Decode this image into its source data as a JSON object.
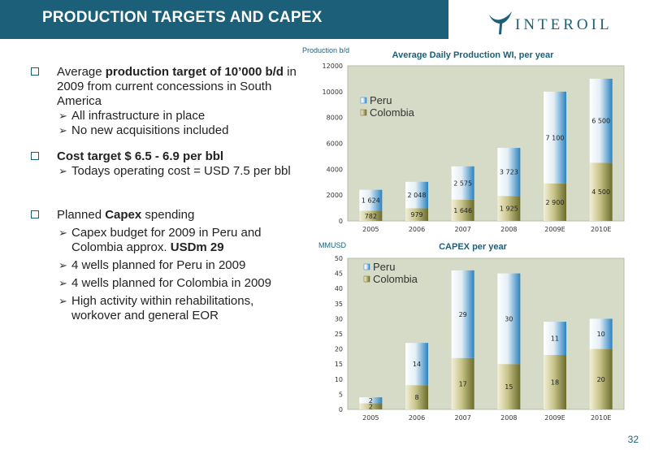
{
  "header": {
    "title": "PRODUCTION TARGETS AND CAPEX",
    "logo_text": "INTEROIL"
  },
  "bullets": {
    "b1": {
      "pre": "Average ",
      "bold": "production target of 10’000 b/d",
      "post": " in 2009 from current concessions in South America",
      "subs": [
        "All infrastructure in place",
        "No new acquisitions included"
      ]
    },
    "b2": {
      "bold": "Cost target $ 6.5 - 6.9 per bbl",
      "subs": [
        "Todays operating cost = USD 7.5 per bbl"
      ]
    },
    "b3": {
      "pre": "Planned ",
      "bold": "Capex",
      "post": " spending",
      "sub1_pre": "Capex budget for 2009 in Peru and Colombia approx. ",
      "sub1_bold": "USDm 29",
      "subs": [
        "4 wells planned for Peru in 2009",
        "4 wells planned for Colombia in 2009",
        "High activity within rehabilitations, workover and general EOR"
      ]
    }
  },
  "page_number": "32",
  "colors": {
    "header": "#1b5f78",
    "peru": "#2a82c0",
    "colombia": "#6b6b2c",
    "plot_bg": "#d5dbc6"
  },
  "chart_data": [
    {
      "type": "bar",
      "stacked": true,
      "title": "Average Daily Production WI, per year",
      "ylabel": "Production b/d",
      "categories": [
        "2005",
        "2006",
        "2007",
        "2008",
        "2009E",
        "2010E"
      ],
      "series": [
        {
          "name": "Colombia",
          "values": [
            782,
            979,
            1646,
            1925,
            2900,
            4500
          ],
          "labels": [
            "782",
            "979",
            "1 646",
            "1 925",
            "2 900",
            "4 500"
          ]
        },
        {
          "name": "Peru",
          "values": [
            1624,
            2048,
            2575,
            3723,
            7100,
            6500
          ],
          "labels": [
            "1 624",
            "2 048",
            "2 575",
            "3 723",
            "7 100",
            "6 500"
          ]
        }
      ],
      "ylim": [
        0,
        12000
      ],
      "yticks": [
        "0",
        "2000",
        "4000",
        "6000",
        "8000",
        "10000",
        "12000"
      ],
      "legend": "top-left"
    },
    {
      "type": "bar",
      "stacked": true,
      "title": "CAPEX per year",
      "ylabel": "MMUSD",
      "categories": [
        "2005",
        "2006",
        "2007",
        "2008",
        "2009E",
        "2010E"
      ],
      "series": [
        {
          "name": "Colombia",
          "values": [
            2,
            8,
            17,
            15,
            18,
            20
          ],
          "labels": [
            "2",
            "8",
            "17",
            "15",
            "18",
            "20"
          ]
        },
        {
          "name": "Peru",
          "values": [
            2,
            14,
            29,
            30,
            11,
            10
          ],
          "labels": [
            "2",
            "14",
            "29",
            "30",
            "11",
            "10"
          ]
        }
      ],
      "ylim": [
        0,
        50
      ],
      "yticks": [
        "0",
        "5",
        "10",
        "15",
        "20",
        "25",
        "30",
        "35",
        "40",
        "45",
        "50"
      ],
      "legend": "top-left"
    }
  ]
}
